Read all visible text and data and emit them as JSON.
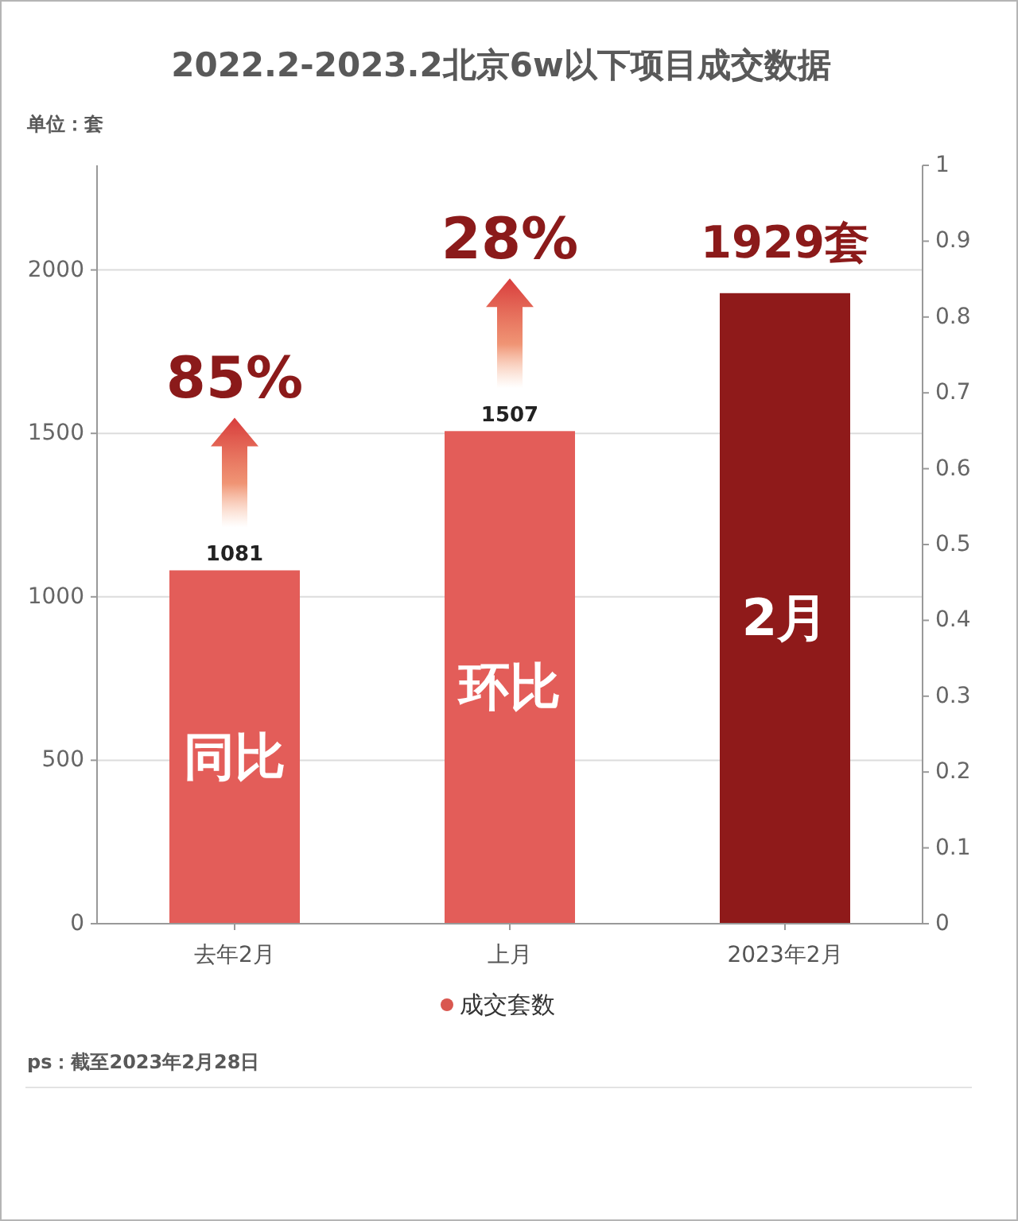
{
  "chart_data": {
    "type": "bar",
    "title": "2022.2-2023.2北京6w以下项目成交数据",
    "subtitle": "单位：套",
    "categories": [
      "去年2月",
      "上月",
      "2023年2月"
    ],
    "series": [
      {
        "name": "成交套数",
        "color": "#d9574f",
        "colors": [
          "#e35d59",
          "#e35d59",
          "#8f1a1a"
        ],
        "values": [
          1081,
          1507,
          1929
        ],
        "value_labels": [
          "1081",
          "1507",
          null
        ]
      }
    ],
    "ylim": [
      0,
      2320
    ],
    "yticks": [
      0,
      500,
      1000,
      1500,
      2000
    ],
    "y2lim": [
      0,
      1
    ],
    "y2ticks": [
      0,
      0.1,
      0.2,
      0.3,
      0.4,
      0.5,
      0.6,
      0.7,
      0.8,
      0.9,
      1
    ],
    "grid": "y",
    "legend": "bottom",
    "annotations": [
      "85%",
      "28%",
      "1929套",
      "同比",
      "环比",
      "2月",
      "ps：截至2023年2月28日"
    ]
  }
}
